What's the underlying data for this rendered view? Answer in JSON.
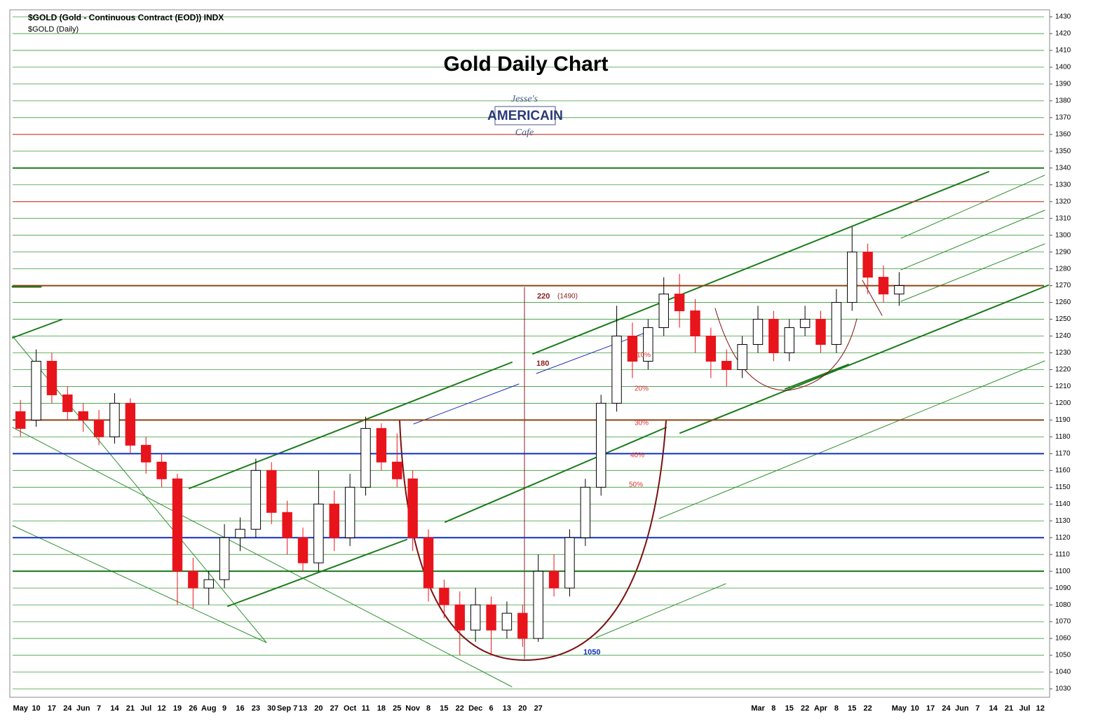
{
  "header": {
    "symbol_line": "$GOLD (Gold - Continuous Contract (EOD)) INDX",
    "period_line": "$GOLD (Daily)"
  },
  "logo": {
    "top": "Jesse's",
    "middle": "AMERICAIN",
    "bottom": "Cafe"
  },
  "chart_data": {
    "type": "candlestick",
    "title": "Gold Daily Chart",
    "categories": [
      "May",
      "10",
      "17",
      "24",
      "Jun",
      "7",
      "14",
      "21",
      "Jul",
      "12",
      "19",
      "26",
      "Aug",
      "9",
      "16",
      "23",
      "30",
      "Sep 7",
      "13",
      "20",
      "27",
      "Oct",
      "11",
      "18",
      "25",
      "Nov",
      "8",
      "15",
      "22",
      "Dec",
      "6",
      "13",
      "20",
      "27",
      null,
      null,
      null,
      null,
      null,
      null,
      null,
      null,
      null,
      null,
      null,
      null,
      null,
      "Mar",
      "8",
      "15",
      "22",
      "Apr",
      "8",
      "15",
      "22",
      null,
      "May",
      "10",
      "17",
      "24",
      "Jun",
      "7",
      "14",
      "21",
      "Jul",
      "12"
    ],
    "open": [
      1195,
      1190,
      1225,
      1205,
      1195,
      1190,
      1180,
      1200,
      1175,
      1165,
      1155,
      1100,
      1090,
      1095,
      1120,
      1125,
      1160,
      1135,
      1120,
      1105,
      1140,
      1120,
      1150,
      1185,
      1165,
      1155,
      1120,
      1090,
      1080,
      1065,
      1080,
      1065,
      1075,
      1060,
      1100,
      1090,
      1120,
      1150,
      1200,
      1240,
      1225,
      1245,
      1265,
      1255,
      1240,
      1225,
      1220,
      1235,
      1250,
      1230,
      1245,
      1250,
      1235,
      1260,
      1290,
      1275,
      1265,
      null,
      null,
      null,
      null,
      null,
      null,
      null,
      null,
      null
    ],
    "high": [
      1202,
      1232,
      1230,
      1210,
      1200,
      1196,
      1206,
      1203,
      1180,
      1170,
      1158,
      1108,
      1100,
      1128,
      1132,
      1167,
      1165,
      1142,
      1126,
      1160,
      1148,
      1158,
      1192,
      1188,
      1182,
      1160,
      1125,
      1095,
      1088,
      1090,
      1085,
      1082,
      1080,
      1110,
      1110,
      1125,
      1155,
      1205,
      1258,
      1248,
      1250,
      1275,
      1277,
      1262,
      1245,
      1232,
      1240,
      1258,
      1255,
      1250,
      1258,
      1255,
      1268,
      1305,
      1295,
      1282,
      1278,
      null,
      null,
      null,
      null,
      null,
      null,
      null,
      null,
      null
    ],
    "low": [
      1180,
      1186,
      1200,
      1190,
      1183,
      1175,
      1176,
      1170,
      1158,
      1150,
      1080,
      1078,
      1080,
      1090,
      1112,
      1120,
      1128,
      1110,
      1100,
      1100,
      1112,
      1115,
      1145,
      1160,
      1150,
      1112,
      1082,
      1072,
      1050,
      1058,
      1050,
      1060,
      1055,
      1058,
      1085,
      1085,
      1115,
      1145,
      1195,
      1215,
      1220,
      1240,
      1245,
      1230,
      1215,
      1210,
      1215,
      1230,
      1225,
      1225,
      1240,
      1230,
      1230,
      1255,
      1265,
      1260,
      1258,
      null,
      null,
      null,
      null,
      null,
      null,
      null,
      null,
      null
    ],
    "close": [
      1185,
      1225,
      1205,
      1195,
      1190,
      1180,
      1200,
      1175,
      1165,
      1155,
      1100,
      1090,
      1095,
      1120,
      1125,
      1160,
      1135,
      1120,
      1105,
      1140,
      1120,
      1150,
      1185,
      1165,
      1155,
      1120,
      1090,
      1080,
      1065,
      1080,
      1065,
      1075,
      1060,
      1100,
      1090,
      1120,
      1150,
      1200,
      1240,
      1225,
      1245,
      1265,
      1255,
      1240,
      1225,
      1220,
      1235,
      1250,
      1230,
      1245,
      1250,
      1235,
      1260,
      1290,
      1275,
      1265,
      1270,
      null,
      null,
      null,
      null,
      null,
      null,
      null,
      null,
      null
    ],
    "up_color": "#ffffff",
    "down_color": "#e8141c",
    "ylim": [
      1025,
      1440
    ],
    "yticks": [
      1030,
      1040,
      1050,
      1060,
      1070,
      1080,
      1090,
      1100,
      1110,
      1120,
      1130,
      1140,
      1150,
      1160,
      1170,
      1180,
      1190,
      1200,
      1210,
      1220,
      1230,
      1240,
      1250,
      1260,
      1270,
      1280,
      1290,
      1300,
      1310,
      1320,
      1330,
      1340,
      1350,
      1360,
      1370,
      1380,
      1390,
      1400,
      1410,
      1420,
      1430
    ],
    "grid": true,
    "grid_color": "#3a9a3a",
    "levels": [
      {
        "value": 1340,
        "color": "#1a7a1a",
        "width": 2
      },
      {
        "value": 1320,
        "color": "#e03030",
        "width": 1
      },
      {
        "value": 1360,
        "color": "#e03030",
        "width": 1
      },
      {
        "value": 1270,
        "color": "#8b4513",
        "width": 2
      },
      {
        "value": 1190,
        "color": "#8b4513",
        "width": 2
      },
      {
        "value": 1170,
        "color": "#1030c0",
        "width": 2
      },
      {
        "value": 1120,
        "color": "#1030c0",
        "width": 2
      },
      {
        "value": 1100,
        "color": "#1a7a1a",
        "width": 2
      }
    ],
    "annotations": {
      "target": "220",
      "target_price": "(1490)",
      "measure": "180",
      "low": "1050",
      "fib10": "10%",
      "fib20": "20%",
      "fib30": "30%",
      "fib40": "40%",
      "fib50": "50%"
    }
  }
}
